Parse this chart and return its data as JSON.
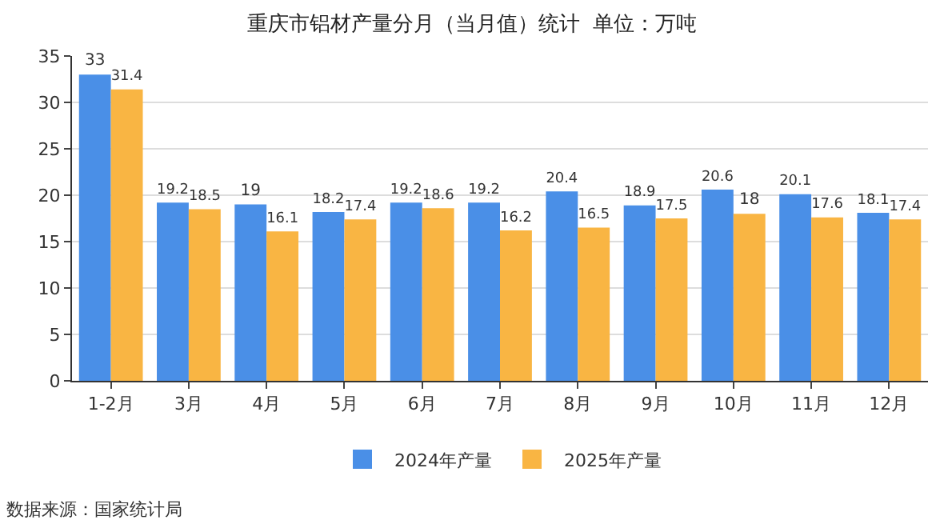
{
  "chart_data": {
    "type": "bar",
    "title": "重庆市铝材产量分月（当月值）统计  单位：万吨",
    "categories": [
      "1-2月",
      "3月",
      "4月",
      "5月",
      "6月",
      "7月",
      "8月",
      "9月",
      "10月",
      "11月",
      "12月"
    ],
    "series": [
      {
        "name": "2024年产量",
        "color": "#4a8fe7",
        "values": [
          33,
          19.2,
          19,
          18.2,
          19.2,
          19.2,
          20.4,
          18.9,
          20.6,
          20.1,
          18.1
        ]
      },
      {
        "name": "2025年产量",
        "color": "#f9b543",
        "values": [
          31.4,
          18.5,
          16.1,
          17.4,
          18.6,
          16.2,
          16.5,
          17.5,
          18,
          17.6,
          17.4
        ]
      }
    ],
    "ylim": [
      0,
      35
    ],
    "yticks": [
      0,
      5,
      10,
      15,
      20,
      25,
      30,
      35
    ],
    "grid": "y",
    "legend": "bottom",
    "data_labels": true,
    "annotations": [
      "数据来源：国家统计局"
    ]
  }
}
